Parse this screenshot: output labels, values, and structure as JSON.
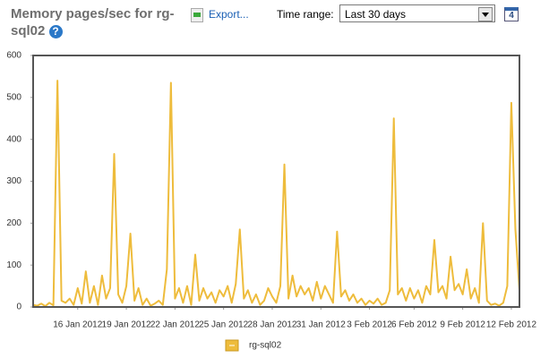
{
  "header": {
    "title": "Memory pages/sec for rg-sql02",
    "help": "?",
    "export": "Export...",
    "time_range_label": "Time range:",
    "time_range": "Last 30 days",
    "calendar_day": "4"
  },
  "chart_data": {
    "type": "line",
    "series": [
      {
        "name": "rg-sql02",
        "color": "#eebc3c",
        "values": [
          5,
          3,
          8,
          2,
          10,
          4,
          540,
          15,
          10,
          20,
          5,
          45,
          8,
          85,
          10,
          50,
          5,
          75,
          20,
          45,
          365,
          30,
          10,
          50,
          175,
          15,
          45,
          5,
          20,
          3,
          8,
          15,
          5,
          90,
          535,
          20,
          45,
          10,
          50,
          5,
          125,
          15,
          45,
          20,
          35,
          10,
          40,
          25,
          50,
          10,
          55,
          185,
          20,
          40,
          10,
          30,
          5,
          15,
          45,
          25,
          10,
          50,
          340,
          20,
          75,
          25,
          50,
          30,
          45,
          15,
          60,
          20,
          50,
          30,
          10,
          180,
          25,
          40,
          15,
          30,
          10,
          20,
          5,
          15,
          8,
          20,
          5,
          10,
          40,
          450,
          30,
          45,
          15,
          45,
          20,
          40,
          10,
          50,
          30,
          160,
          35,
          50,
          20,
          120,
          40,
          55,
          30,
          90,
          20,
          45,
          10,
          200,
          15,
          5,
          8,
          3,
          10,
          50,
          487,
          185,
          40
        ]
      }
    ],
    "xlim": [
      0,
      120
    ],
    "xticks": [
      {
        "value": 11,
        "label": "16 Jan 2012"
      },
      {
        "value": 23,
        "label": "19 Jan 2012"
      },
      {
        "value": 35,
        "label": "22 Jan 2012"
      },
      {
        "value": 47,
        "label": "25 Jan 2012"
      },
      {
        "value": 59,
        "label": "28 Jan 2012"
      },
      {
        "value": 71,
        "label": "31 Jan 2012"
      },
      {
        "value": 83,
        "label": "3 Feb 2012"
      },
      {
        "value": 94,
        "label": "6 Feb 2012"
      },
      {
        "value": 106,
        "label": "9 Feb 2012"
      },
      {
        "value": 118,
        "label": "12 Feb 2012"
      }
    ],
    "ylim": [
      0,
      600
    ],
    "yticks": [
      0,
      100,
      200,
      300,
      400,
      500,
      600
    ],
    "grid": false,
    "legend": "bottom"
  }
}
